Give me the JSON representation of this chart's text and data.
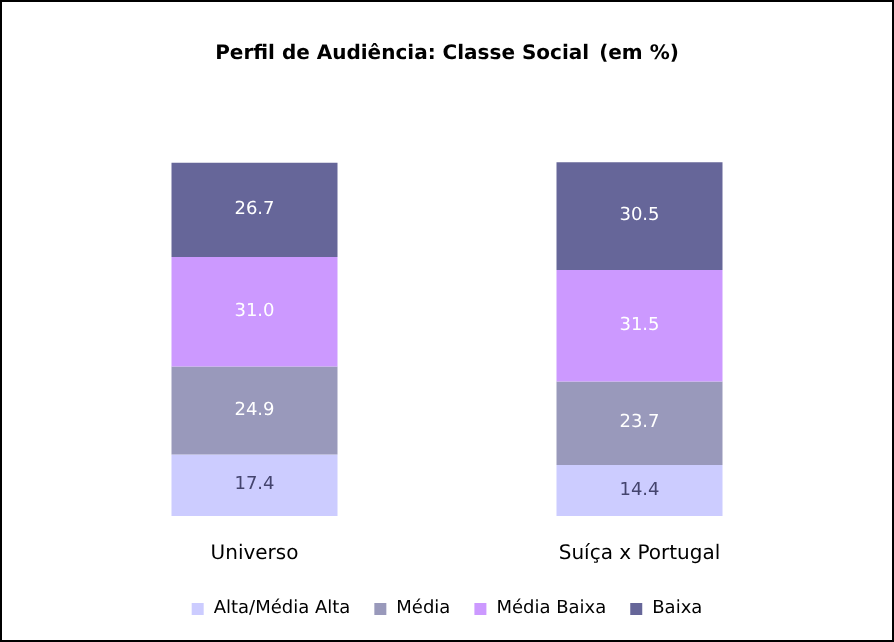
{
  "chart_data": {
    "type": "bar",
    "title": "Perfil de Audiência: Classe Social",
    "subtitle": "(em %)",
    "stacked": true,
    "legend": "bottom",
    "categories": [
      "Universo",
      "Suíça x Portugal"
    ],
    "series": [
      {
        "name": "Alta/Média Alta",
        "color": "#ccccff",
        "values": [
          17.4,
          14.4
        ],
        "value_labels": [
          "17.4",
          "14.4"
        ]
      },
      {
        "name": "Média",
        "color": "#9999bb",
        "values": [
          24.9,
          23.7
        ],
        "value_labels": [
          "24.9",
          "23.7"
        ]
      },
      {
        "name": "Média Baixa",
        "color": "#cc99ff",
        "values": [
          31.0,
          31.5
        ],
        "value_labels": [
          "31.0",
          "31.5"
        ]
      },
      {
        "name": "Baixa",
        "color": "#666699",
        "values": [
          26.7,
          30.5
        ],
        "value_labels": [
          "26.7",
          "30.5"
        ]
      }
    ]
  }
}
